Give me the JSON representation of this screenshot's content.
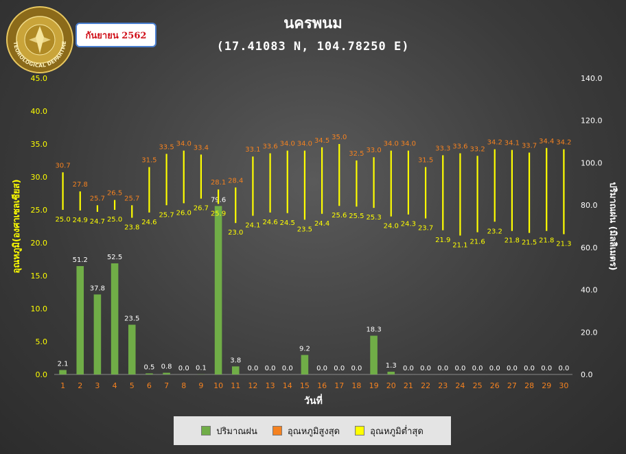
{
  "header": {
    "title": "นครพนม",
    "subtitle": "(17.41083 N, 104.78250 E)",
    "date_badge": "กันยายน 2562",
    "seal_text": "METEOROLOGICAL DEPARTMENT"
  },
  "legend": {
    "items": [
      {
        "label": "ปริมาณฝน",
        "color": "#70ad47"
      },
      {
        "label": "อุณหภูมิสูงสุด",
        "color": "#f58220"
      },
      {
        "label": "อุณหภูมิต่ำสุด",
        "color": "#ffff00"
      }
    ]
  },
  "chart_data": {
    "type": "bar",
    "xlabel": "วันที่",
    "ylabel_left": "อุณหภูมิ(องศาเซลเซียส)",
    "ylabel_right": "ปริมาณฝน (มิลลิเมตร)",
    "ylim_left": [
      0,
      45
    ],
    "ylim_right": [
      0,
      140
    ],
    "yticks_left": [
      "0.0",
      "5.0",
      "10.0",
      "15.0",
      "20.0",
      "25.0",
      "30.0",
      "35.0",
      "40.0",
      "45.0"
    ],
    "yticks_right": [
      "0.0",
      "20.0",
      "40.0",
      "60.0",
      "80.0",
      "100.0",
      "120.0",
      "140.0"
    ],
    "categories": [
      "1",
      "2",
      "3",
      "4",
      "5",
      "6",
      "7",
      "8",
      "9",
      "10",
      "11",
      "12",
      "13",
      "14",
      "15",
      "16",
      "17",
      "18",
      "19",
      "20",
      "21",
      "22",
      "23",
      "24",
      "25",
      "26",
      "27",
      "28",
      "29",
      "30"
    ],
    "series": [
      {
        "name": "ปริมาณฝน",
        "axis": "right",
        "values": [
          2.1,
          51.2,
          37.8,
          52.5,
          23.5,
          0.5,
          0.8,
          0.0,
          0.1,
          79.6,
          3.8,
          0.0,
          0.0,
          0.0,
          9.2,
          0.0,
          0.0,
          0.0,
          18.3,
          1.3,
          0.0,
          0.0,
          0.0,
          0.0,
          0.0,
          0.0,
          0.0,
          0.0,
          0.0,
          0.0
        ]
      },
      {
        "name": "อุณหภูมิสูงสุด",
        "axis": "left",
        "values": [
          30.7,
          27.8,
          25.7,
          26.5,
          25.7,
          31.5,
          33.5,
          34.0,
          33.4,
          28.1,
          28.4,
          33.1,
          33.6,
          34.0,
          34.0,
          34.5,
          35.0,
          32.5,
          33.0,
          34.0,
          34.0,
          31.5,
          33.3,
          33.6,
          33.2,
          34.2,
          34.1,
          33.7,
          34.4,
          34.2
        ]
      },
      {
        "name": "อุณหภูมิต่ำสุด",
        "axis": "left",
        "values": [
          25.0,
          24.9,
          24.7,
          25.0,
          23.8,
          24.6,
          25.7,
          26.0,
          26.7,
          25.9,
          23.0,
          24.1,
          24.6,
          24.5,
          23.5,
          24.4,
          25.6,
          25.5,
          25.3,
          24.0,
          24.3,
          23.7,
          21.9,
          21.1,
          21.6,
          23.2,
          21.8,
          21.5,
          21.8,
          21.3
        ]
      }
    ],
    "colors": {
      "rain": "#70ad47",
      "max_label": "#f58220",
      "min_label": "#ffff00",
      "temp_axis": "#ffff00",
      "rain_axis": "#ffffff",
      "day_labels": "#f58220"
    }
  }
}
